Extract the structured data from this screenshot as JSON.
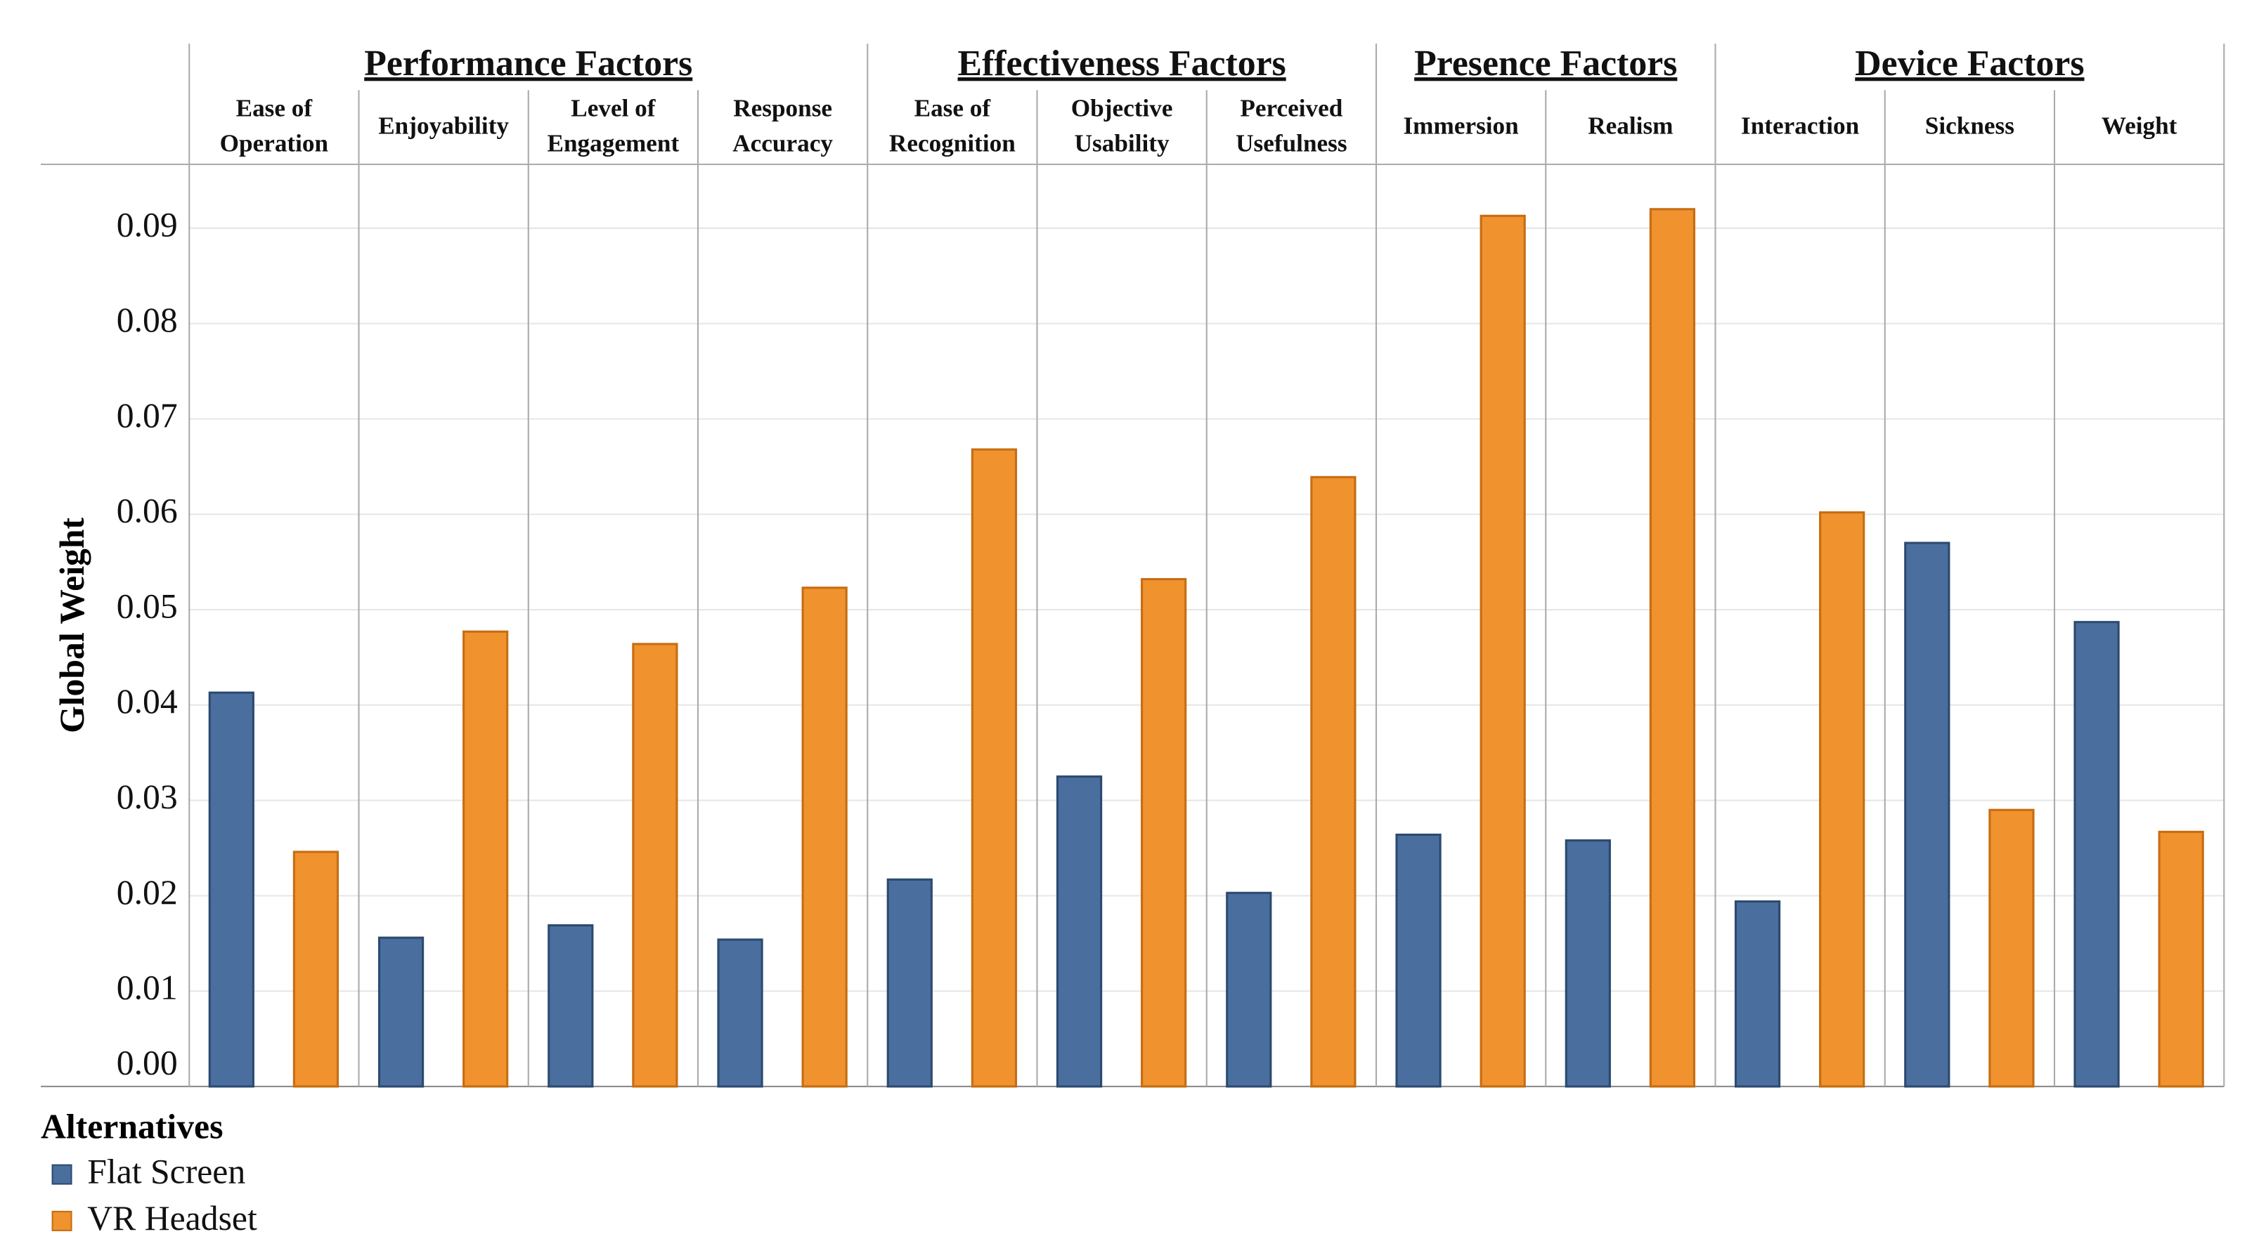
{
  "chart_data": {
    "type": "bar",
    "y_label": "Global Weight",
    "groups": [
      {
        "name": "Performance Factors",
        "categories": [
          "Ease of Operation",
          "Enjoyability",
          "Level of Engagement",
          "Response Accuracy"
        ]
      },
      {
        "name": "Effectiveness Factors",
        "categories": [
          "Ease of Recognition",
          "Objective Usability",
          "Perceived Usefulness"
        ]
      },
      {
        "name": "Presence Factors",
        "categories": [
          "Immersion",
          "Realism"
        ]
      },
      {
        "name": "Device Factors",
        "categories": [
          "Interaction",
          "Sickness",
          "Weight"
        ]
      }
    ],
    "series": [
      {
        "name": "Flat Screen",
        "color": "#4a6f9e",
        "values": [
          0.0413,
          0.0156,
          0.0169,
          0.0154,
          0.0217,
          0.0325,
          0.0203,
          0.0264,
          0.0258,
          0.0194,
          0.057,
          0.0487
        ]
      },
      {
        "name": "VR Headset",
        "color": "#f0922e",
        "values": [
          0.0246,
          0.0477,
          0.0464,
          0.0523,
          0.0668,
          0.0532,
          0.0639,
          0.0913,
          0.092,
          0.0602,
          0.029,
          0.0267
        ]
      }
    ],
    "legend_title": "Alternatives",
    "ylim": [
      0,
      0.0967
    ],
    "yticks": [
      {
        "value": 0,
        "label": "0.00"
      },
      0.01,
      0.02,
      0.03,
      0.04,
      0.05,
      0.06,
      0.07,
      0.08,
      0.09
    ],
    "grid": true
  }
}
